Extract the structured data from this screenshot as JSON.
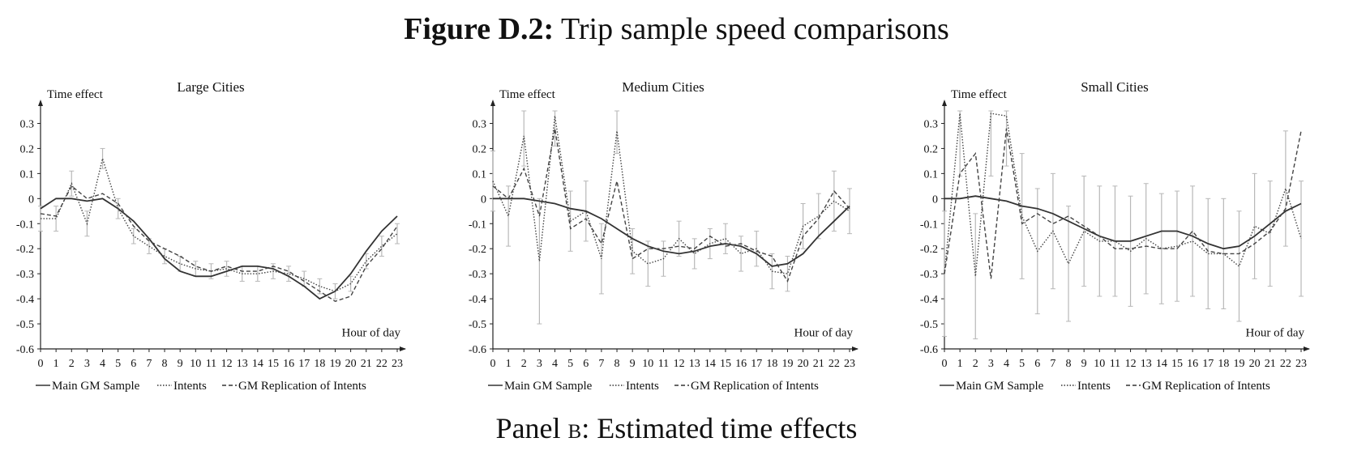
{
  "figure": {
    "label": "Figure D.2:",
    "title": "Trip sample speed comparisons",
    "panel_label_prefix": "Panel",
    "panel_letter": "b",
    "panel_title": ": Estimated time effects"
  },
  "chart_data": [
    {
      "type": "line",
      "title": "Large Cities",
      "ylabel": "Time effect",
      "xlabel": "Hour of day",
      "x": [
        0,
        1,
        2,
        3,
        4,
        5,
        6,
        7,
        8,
        9,
        10,
        11,
        12,
        13,
        14,
        15,
        16,
        17,
        18,
        19,
        20,
        21,
        22,
        23
      ],
      "ylim": [
        -0.6,
        0.35
      ],
      "yticks": [
        0.3,
        0.2,
        0.1,
        0,
        -0.1,
        -0.2,
        -0.3,
        -0.4,
        -0.5,
        -0.6
      ],
      "xticks": [
        "0",
        "1",
        "2",
        "3",
        "4",
        "5",
        "6",
        "7",
        "8",
        "9",
        "10",
        "11",
        "12",
        "13",
        "14",
        "15",
        "16",
        "17",
        "18",
        "19",
        "20",
        "21",
        "22",
        "23"
      ],
      "legend": [
        "Main GM Sample",
        "Intents",
        "GM Replication of Intents"
      ],
      "series": [
        {
          "name": "Main GM Sample",
          "style": "solid",
          "values": [
            -0.04,
            0.0,
            0.0,
            -0.01,
            0.0,
            -0.04,
            -0.09,
            -0.16,
            -0.24,
            -0.29,
            -0.31,
            -0.31,
            -0.29,
            -0.27,
            -0.27,
            -0.28,
            -0.31,
            -0.35,
            -0.4,
            -0.37,
            -0.3,
            -0.21,
            -0.13,
            -0.07
          ]
        },
        {
          "name": "Intents",
          "style": "dotted",
          "values": [
            -0.08,
            -0.08,
            0.06,
            -0.1,
            0.16,
            -0.04,
            -0.15,
            -0.19,
            -0.23,
            -0.26,
            -0.28,
            -0.29,
            -0.28,
            -0.3,
            -0.3,
            -0.29,
            -0.3,
            -0.32,
            -0.35,
            -0.37,
            -0.34,
            -0.25,
            -0.19,
            -0.14
          ]
        },
        {
          "name": "GM Replication of Intents",
          "style": "dashed",
          "values": [
            -0.06,
            -0.07,
            0.05,
            0.0,
            0.02,
            -0.02,
            -0.11,
            -0.17,
            -0.2,
            -0.23,
            -0.27,
            -0.29,
            -0.27,
            -0.29,
            -0.29,
            -0.27,
            -0.29,
            -0.33,
            -0.37,
            -0.41,
            -0.39,
            -0.27,
            -0.2,
            -0.11
          ]
        }
      ],
      "error_bars": {
        "series": "Intents",
        "half_width": [
          0.05,
          0.05,
          0.05,
          0.05,
          0.04,
          0.04,
          0.03,
          0.03,
          0.03,
          0.03,
          0.03,
          0.03,
          0.03,
          0.03,
          0.03,
          0.03,
          0.03,
          0.03,
          0.03,
          0.03,
          0.03,
          0.03,
          0.04,
          0.04
        ]
      }
    },
    {
      "type": "line",
      "title": "Medium Cities",
      "ylabel": "Time effect",
      "xlabel": "Hour of day",
      "x": [
        0,
        1,
        2,
        3,
        4,
        5,
        6,
        7,
        8,
        9,
        10,
        11,
        12,
        13,
        14,
        15,
        16,
        17,
        18,
        19,
        20,
        21,
        22,
        23
      ],
      "ylim": [
        -0.6,
        0.35
      ],
      "yticks": [
        0.3,
        0.2,
        0.1,
        0,
        -0.1,
        -0.2,
        -0.3,
        -0.4,
        -0.5,
        -0.6
      ],
      "xticks": [
        "0",
        "1",
        "2",
        "3",
        "4",
        "5",
        "6",
        "7",
        "8",
        "9",
        "10",
        "11",
        "12",
        "13",
        "14",
        "15",
        "16",
        "17",
        "18",
        "19",
        "20",
        "21",
        "22",
        "23"
      ],
      "legend": [
        "Main GM Sample",
        "Intents",
        "GM Replication of Intents"
      ],
      "series": [
        {
          "name": "Main GM Sample",
          "style": "solid",
          "values": [
            0.0,
            0.0,
            0.0,
            -0.01,
            -0.02,
            -0.04,
            -0.05,
            -0.08,
            -0.12,
            -0.16,
            -0.19,
            -0.21,
            -0.22,
            -0.21,
            -0.19,
            -0.18,
            -0.19,
            -0.22,
            -0.27,
            -0.26,
            -0.22,
            -0.15,
            -0.09,
            -0.03
          ]
        },
        {
          "name": "Intents",
          "style": "dotted",
          "values": [
            0.07,
            -0.07,
            0.25,
            -0.25,
            0.33,
            -0.09,
            -0.05,
            -0.24,
            0.27,
            -0.21,
            -0.26,
            -0.24,
            -0.16,
            -0.22,
            -0.18,
            -0.16,
            -0.22,
            -0.2,
            -0.29,
            -0.3,
            -0.11,
            -0.07,
            -0.01,
            -0.05
          ]
        },
        {
          "name": "GM Replication of Intents",
          "style": "dashed",
          "values": [
            0.05,
            0.0,
            0.12,
            -0.07,
            0.28,
            -0.12,
            -0.08,
            -0.18,
            0.07,
            -0.24,
            -0.2,
            -0.2,
            -0.19,
            -0.2,
            -0.15,
            -0.19,
            -0.18,
            -0.21,
            -0.23,
            -0.33,
            -0.15,
            -0.08,
            0.03,
            -0.04
          ]
        }
      ],
      "error_bars": {
        "series": "Intents",
        "half_width": [
          0.12,
          0.12,
          0.12,
          0.25,
          0.12,
          0.12,
          0.12,
          0.14,
          0.09,
          0.09,
          0.09,
          0.07,
          0.07,
          0.06,
          0.06,
          0.06,
          0.07,
          0.07,
          0.07,
          0.07,
          0.09,
          0.09,
          0.12,
          0.09
        ]
      }
    },
    {
      "type": "line",
      "title": "Small Cities",
      "ylabel": "Time effect",
      "xlabel": "Hour of day",
      "x": [
        0,
        1,
        2,
        3,
        4,
        5,
        6,
        7,
        8,
        9,
        10,
        11,
        12,
        13,
        14,
        15,
        16,
        17,
        18,
        19,
        20,
        21,
        22,
        23
      ],
      "ylim": [
        -0.6,
        0.35
      ],
      "yticks": [
        0.3,
        0.2,
        0.1,
        0,
        -0.1,
        -0.2,
        -0.3,
        -0.4,
        -0.5,
        -0.6
      ],
      "xticks": [
        "0",
        "1",
        "2",
        "3",
        "4",
        "5",
        "6",
        "7",
        "8",
        "9",
        "10",
        "11",
        "12",
        "13",
        "14",
        "15",
        "16",
        "17",
        "18",
        "19",
        "20",
        "21",
        "22",
        "23"
      ],
      "legend": [
        "Main GM Sample",
        "Intents",
        "GM Replication of Intents"
      ],
      "series": [
        {
          "name": "Main GM Sample",
          "style": "solid",
          "values": [
            0.0,
            0.0,
            0.01,
            0.0,
            -0.01,
            -0.03,
            -0.04,
            -0.06,
            -0.09,
            -0.12,
            -0.15,
            -0.17,
            -0.17,
            -0.15,
            -0.13,
            -0.13,
            -0.15,
            -0.18,
            -0.2,
            -0.19,
            -0.15,
            -0.1,
            -0.05,
            -0.02
          ]
        },
        {
          "name": "Intents",
          "style": "dotted",
          "values": [
            -0.3,
            0.34,
            -0.31,
            0.34,
            0.33,
            -0.07,
            -0.21,
            -0.13,
            -0.26,
            -0.13,
            -0.17,
            -0.17,
            -0.21,
            -0.16,
            -0.2,
            -0.19,
            -0.17,
            -0.22,
            -0.22,
            -0.27,
            -0.11,
            -0.14,
            0.04,
            -0.16
          ]
        },
        {
          "name": "GM Replication of Intents",
          "style": "dashed",
          "values": [
            -0.3,
            0.1,
            0.18,
            -0.32,
            0.28,
            -0.1,
            -0.06,
            -0.1,
            -0.07,
            -0.11,
            -0.15,
            -0.2,
            -0.2,
            -0.19,
            -0.2,
            -0.2,
            -0.13,
            -0.21,
            -0.22,
            -0.22,
            -0.18,
            -0.13,
            -0.04,
            0.27
          ]
        }
      ],
      "error_bars": {
        "series": "Intents",
        "half_width": [
          0.25,
          0.25,
          0.25,
          0.25,
          0.2,
          0.25,
          0.25,
          0.23,
          0.23,
          0.22,
          0.22,
          0.22,
          0.22,
          0.22,
          0.22,
          0.22,
          0.22,
          0.22,
          0.22,
          0.22,
          0.21,
          0.21,
          0.23,
          0.23
        ]
      }
    }
  ]
}
